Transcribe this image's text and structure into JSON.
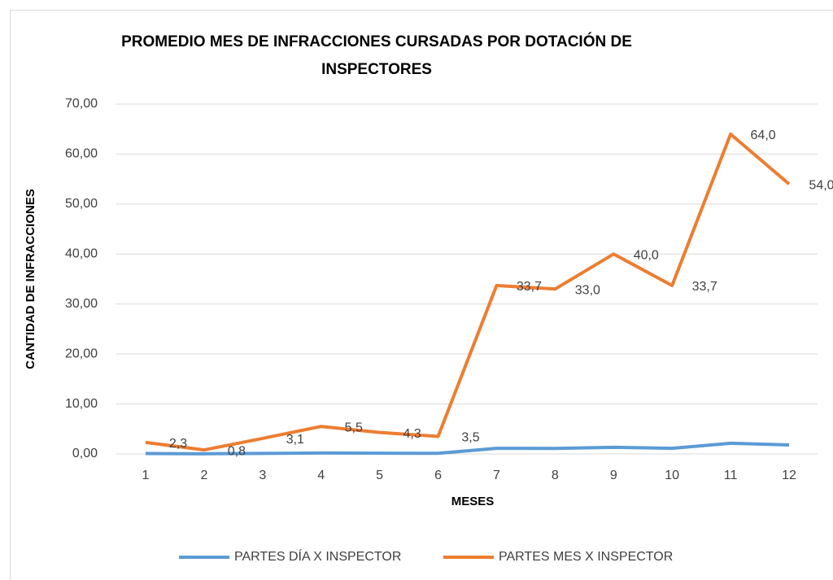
{
  "chart_data": {
    "type": "line",
    "title": [
      "PROMEDIO MES DE INFRACCIONES CURSADAS POR DOTACIÓN DE",
      "INSPECTORES"
    ],
    "x_label": "MESES",
    "y_label": "CANTIDAD DE INFRACCIONES",
    "categories": [
      "1",
      "2",
      "3",
      "4",
      "5",
      "6",
      "7",
      "8",
      "9",
      "10",
      "11",
      "12"
    ],
    "ylim": [
      0,
      70
    ],
    "yticks": [
      {
        "value": 0,
        "label": "0,00"
      },
      {
        "value": 10,
        "label": "10,00"
      },
      {
        "value": 20,
        "label": "20,00"
      },
      {
        "value": 30,
        "label": "30,00"
      },
      {
        "value": 40,
        "label": "40,00"
      },
      {
        "value": 50,
        "label": "50,00"
      },
      {
        "value": 60,
        "label": "60,00"
      },
      {
        "value": 70,
        "label": "70,00"
      }
    ],
    "grid": true,
    "legend": "bottom",
    "series": [
      {
        "name": "PARTES DÍA X INSPECTOR",
        "color": "#5b9bd5",
        "values": [
          0.08,
          0.03,
          0.1,
          0.18,
          0.14,
          0.12,
          1.12,
          1.1,
          1.33,
          1.12,
          2.13,
          1.8
        ]
      },
      {
        "name": "PARTES MES X INSPECTOR",
        "color": "#ed7d31",
        "values": [
          2.3,
          0.8,
          3.1,
          5.5,
          4.3,
          3.5,
          33.7,
          33.0,
          40.0,
          33.7,
          64.0,
          54.0
        ],
        "value_labels": [
          "2,3",
          "0,8",
          "3,1",
          "5,5",
          "4,3",
          "3,5",
          "33,7",
          "33,0",
          "40,0",
          "33,7",
          "64,0",
          "54,0"
        ]
      }
    ]
  }
}
